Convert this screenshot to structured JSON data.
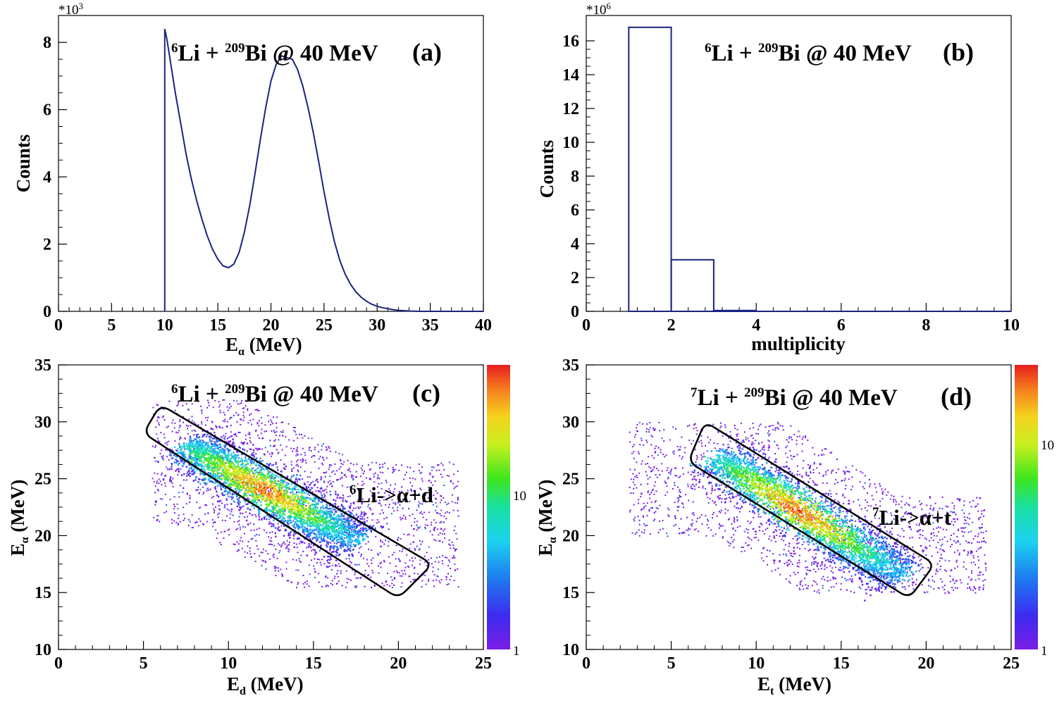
{
  "colors": {
    "hist_line": "#1a237e",
    "axis": "#000000",
    "gate": "#000000"
  },
  "chart_data": [
    {
      "id": "a",
      "type": "line",
      "title_parts": [
        "6",
        "Li + ",
        "209",
        "Bi @ 40 MeV"
      ],
      "letter": "(a)",
      "xlabel": "E",
      "xlabel_sub": "α",
      "xlabel_unit": " (MeV)",
      "ylabel": "Counts",
      "y_multiplier": "*10",
      "y_multiplier_exp": "3",
      "xlim": [
        0,
        40
      ],
      "ylim": [
        0,
        8.8
      ],
      "xticks": [
        0,
        5,
        10,
        15,
        20,
        25,
        30,
        35,
        40
      ],
      "yticks": [
        0,
        2,
        4,
        6,
        8
      ],
      "series": [
        {
          "name": "E_alpha spectrum",
          "x": [
            10,
            10.2,
            10.5,
            11,
            11.5,
            12,
            12.5,
            13,
            13.5,
            14,
            14.5,
            15,
            15.5,
            16,
            16.5,
            17,
            17.5,
            18,
            18.5,
            19,
            19.5,
            20,
            20.5,
            21,
            21.5,
            22,
            22.5,
            23,
            23.5,
            24,
            24.5,
            25,
            25.5,
            26,
            26.5,
            27,
            27.5,
            28,
            28.5,
            29,
            29.5,
            30,
            30.5,
            31,
            31.5,
            32,
            32.5,
            33,
            33.5,
            34
          ],
          "y": [
            8.4,
            8.1,
            7.5,
            6.5,
            5.6,
            4.7,
            3.95,
            3.3,
            2.75,
            2.25,
            1.85,
            1.55,
            1.35,
            1.3,
            1.4,
            1.75,
            2.35,
            3.15,
            4.1,
            5.1,
            6.05,
            6.85,
            7.35,
            7.6,
            7.55,
            7.5,
            7.2,
            6.7,
            6.05,
            5.3,
            4.45,
            3.55,
            2.75,
            2.05,
            1.5,
            1.1,
            0.8,
            0.58,
            0.42,
            0.3,
            0.21,
            0.15,
            0.11,
            0.08,
            0.05,
            0.03,
            0.02,
            0.01,
            0.005,
            0.0
          ]
        }
      ]
    },
    {
      "id": "b",
      "type": "bar",
      "title_parts": [
        "6",
        "Li + ",
        "209",
        "Bi @ 40 MeV"
      ],
      "letter": "(b)",
      "xlabel": "multiplicity",
      "ylabel": "Counts",
      "y_multiplier": "*10",
      "y_multiplier_exp": "6",
      "xlim": [
        0,
        10
      ],
      "ylim": [
        0,
        17.5
      ],
      "xticks": [
        0,
        2,
        4,
        6,
        8,
        10
      ],
      "yticks": [
        0,
        2,
        4,
        6,
        8,
        10,
        12,
        14,
        16
      ],
      "bins": [
        [
          1,
          2
        ],
        [
          2,
          3
        ],
        [
          3,
          4
        ]
      ],
      "values": [
        16.8,
        3.05,
        0.05
      ]
    },
    {
      "id": "c",
      "type": "heatmap",
      "title_parts": [
        "6",
        "Li + ",
        "209",
        "Bi @ 40 MeV"
      ],
      "letter": "(c)",
      "gate_label_parts": [
        "6",
        "Li->α+d"
      ],
      "xlabel": "E",
      "xlabel_sub": "d",
      "xlabel_unit": " (MeV)",
      "ylabel": "E",
      "ylabel_sub": "α",
      "ylabel_unit": " (MeV)",
      "xlim": [
        0,
        25
      ],
      "ylim": [
        10,
        35
      ],
      "xticks": [
        0,
        5,
        10,
        15,
        20,
        25
      ],
      "yticks": [
        10,
        15,
        20,
        25,
        30,
        35
      ],
      "colorbar_ticks": [
        "1",
        "10"
      ],
      "ridge": [
        [
          7.5,
          28
        ],
        [
          17.5,
          19.5
        ]
      ],
      "cloud": {
        "x_range": [
          5.5,
          23.5
        ],
        "y_range": [
          15.5,
          32
        ]
      },
      "gate": [
        [
          6,
          31.5
        ],
        [
          5,
          29
        ],
        [
          20,
          14.5
        ],
        [
          22,
          17.5
        ]
      ]
    },
    {
      "id": "d",
      "type": "heatmap",
      "title_parts": [
        "7",
        "Li + ",
        "209",
        "Bi @ 40 MeV"
      ],
      "letter": "(d)",
      "gate_label_parts": [
        "7",
        "Li->α+t"
      ],
      "xlabel": "E",
      "xlabel_sub": "t",
      "xlabel_unit": " (MeV)",
      "ylabel": "E",
      "ylabel_sub": "α",
      "ylabel_unit": " (MeV)",
      "xlim": [
        0,
        25
      ],
      "ylim": [
        10,
        35
      ],
      "xticks": [
        0,
        5,
        10,
        15,
        20,
        25
      ],
      "yticks": [
        10,
        15,
        20,
        25,
        30,
        35
      ],
      "colorbar_ticks": [
        "1",
        "10"
      ],
      "ridge": [
        [
          7.5,
          27
        ],
        [
          18.5,
          16.5
        ]
      ],
      "cloud": {
        "x_range": [
          2.5,
          23.5
        ],
        "y_range": [
          15,
          30
        ]
      },
      "gate": [
        [
          7,
          30
        ],
        [
          6,
          26.5
        ],
        [
          19,
          14.5
        ],
        [
          20.5,
          17.5
        ]
      ]
    }
  ]
}
